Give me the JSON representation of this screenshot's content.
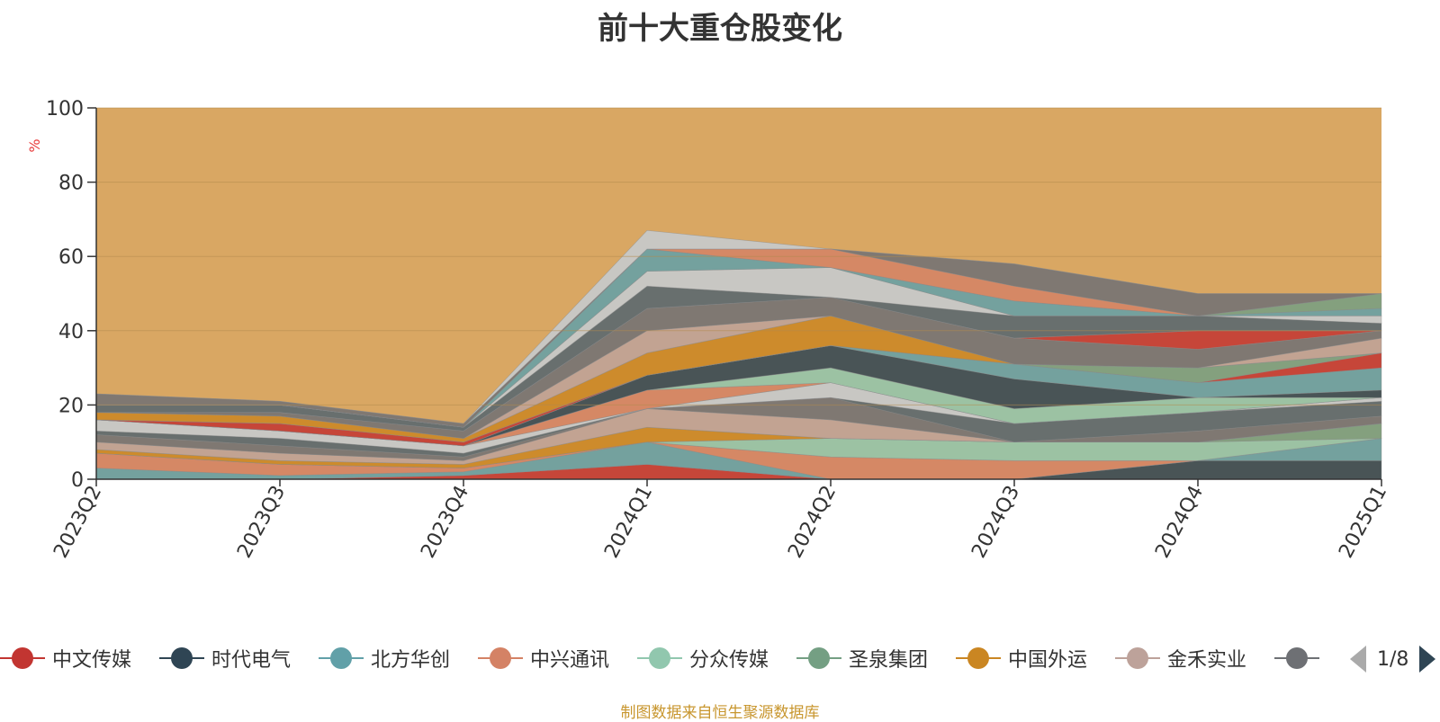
{
  "chart_data": {
    "type": "area",
    "title": "前十大重仓股变化",
    "ylabel": "%",
    "ylim": [
      0,
      100
    ],
    "yticks": [
      0,
      20,
      40,
      60,
      80,
      100
    ],
    "grid": true,
    "legend_position": "bottom",
    "categories": [
      "2023Q2",
      "2023Q3",
      "2023Q4",
      "2024Q1",
      "2024Q2",
      "2024Q3",
      "2024Q4",
      "2025Q1"
    ],
    "series": [
      {
        "name": "中文传媒",
        "color": "#c23531",
        "values": [
          0,
          0,
          1,
          4,
          0,
          0,
          0,
          0
        ]
      },
      {
        "name": "时代电气",
        "color": "#2f4554",
        "values": [
          0,
          0,
          0,
          0,
          0,
          0,
          5,
          5
        ]
      },
      {
        "name": "北方华创",
        "color": "#61a0a8",
        "values": [
          3,
          1,
          1,
          6,
          0,
          0,
          0,
          6
        ]
      },
      {
        "name": "中兴通讯",
        "color": "#d48265",
        "values": [
          4,
          3,
          1,
          0,
          6,
          5,
          0,
          0
        ]
      },
      {
        "name": "分众传媒",
        "color": "#91c7ae",
        "values": [
          0,
          0,
          0,
          0,
          5,
          5,
          5,
          0
        ]
      },
      {
        "name": "圣泉集团",
        "color": "#749f83",
        "values": [
          0,
          0,
          0,
          0,
          0,
          0,
          0,
          4
        ]
      },
      {
        "name": "中国外运",
        "color": "#ca8622",
        "values": [
          1,
          1,
          1,
          4,
          0,
          0,
          0,
          0
        ]
      },
      {
        "name": "金禾实业",
        "color": "#bda29a",
        "values": [
          2,
          2,
          1,
          5,
          5,
          0,
          0,
          0
        ]
      }
    ],
    "other_bands": [
      {
        "color": "#6e7074",
        "values": [
          2,
          2,
          1,
          0,
          6,
          0,
          3,
          2
        ]
      },
      {
        "color": "#546570",
        "values": [
          1,
          2,
          1,
          0,
          0,
          5,
          5,
          4
        ]
      },
      {
        "color": "#c4ccd3",
        "values": [
          3,
          2,
          2,
          0,
          4,
          0,
          0,
          1
        ]
      },
      {
        "color": "#d48265",
        "values": [
          0,
          0,
          0,
          5,
          0,
          0,
          0,
          0
        ]
      },
      {
        "color": "#91c7ae",
        "values": [
          0,
          0,
          0,
          0,
          4,
          4,
          4,
          0
        ]
      },
      {
        "color": "#2f4554",
        "values": [
          0,
          0,
          0,
          4,
          6,
          8,
          0,
          2
        ]
      },
      {
        "color": "#61a0a8",
        "values": [
          0,
          0,
          0,
          0,
          0,
          4,
          4,
          6
        ]
      },
      {
        "color": "#c23531",
        "values": [
          0,
          2,
          1,
          0,
          0,
          0,
          0,
          4
        ]
      },
      {
        "color": "#749f83",
        "values": [
          0,
          0,
          0,
          0,
          0,
          0,
          4,
          0
        ]
      },
      {
        "color": "#ca8622",
        "values": [
          2,
          2,
          1,
          6,
          8,
          0,
          0,
          0
        ]
      },
      {
        "color": "#bda29a",
        "values": [
          0,
          0,
          0,
          6,
          0,
          0,
          0,
          4
        ]
      },
      {
        "color": "#6e7074",
        "values": [
          0,
          1,
          2,
          6,
          5,
          7,
          5,
          2
        ]
      },
      {
        "color": "#c23531",
        "values": [
          0,
          0,
          0,
          0,
          0,
          0,
          5,
          0
        ]
      },
      {
        "color": "#546570",
        "values": [
          2,
          2,
          1,
          6,
          0,
          6,
          4,
          2
        ]
      },
      {
        "color": "#c4ccd3",
        "values": [
          0,
          0,
          0,
          4,
          8,
          0,
          0,
          2
        ]
      },
      {
        "color": "#61a0a8",
        "values": [
          0,
          0,
          0,
          6,
          0,
          4,
          0,
          2
        ]
      },
      {
        "color": "#749f83",
        "values": [
          0,
          0,
          0,
          0,
          0,
          0,
          0,
          4
        ]
      },
      {
        "color": "#d48265",
        "values": [
          0,
          0,
          0,
          0,
          5,
          4,
          0,
          0
        ]
      },
      {
        "color": "#6e7074",
        "values": [
          3,
          1,
          1,
          0,
          0,
          6,
          6,
          0
        ]
      },
      {
        "color": "#c4ccd3",
        "values": [
          0,
          0,
          0,
          5,
          0,
          0,
          0,
          0
        ]
      }
    ],
    "base": {
      "color": "#d9a763",
      "value": 100
    }
  },
  "legend": {
    "items": [
      {
        "name": "中文传媒",
        "color": "#c23531"
      },
      {
        "name": "时代电气",
        "color": "#2f4554"
      },
      {
        "name": "北方华创",
        "color": "#61a0a8"
      },
      {
        "name": "中兴通讯",
        "color": "#d48265"
      },
      {
        "name": "分众传媒",
        "color": "#91c7ae"
      },
      {
        "name": "圣泉集团",
        "color": "#749f83"
      },
      {
        "name": "中国外运",
        "color": "#ca8622"
      },
      {
        "name": "金禾实业",
        "color": "#bda29a"
      },
      {
        "name": "",
        "color": "#6e7074"
      }
    ],
    "page": "1/8",
    "prev_icon": "triangle-left-icon",
    "next_icon": "triangle-right-icon"
  },
  "source_note": "制图数据来自恒生聚源数据库"
}
